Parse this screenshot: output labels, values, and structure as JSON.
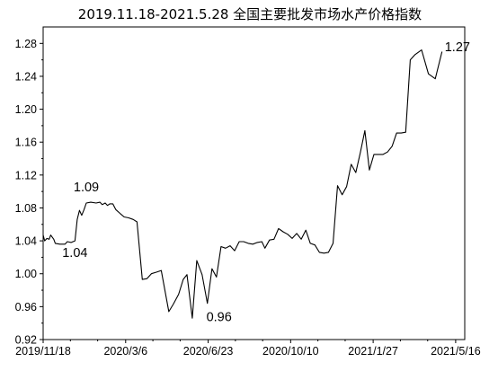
{
  "chart_data": {
    "type": "line",
    "title": "2019.11.18-2021.5.28 全国主要批发市场水产价格指数",
    "xlabel": "",
    "ylabel": "",
    "x_range": [
      "2019-11-18",
      "2021-05-28"
    ],
    "ylim": [
      0.92,
      1.3
    ],
    "y_ticks": [
      "0.92",
      "0.96",
      "1.00",
      "1.04",
      "1.08",
      "1.12",
      "1.16",
      "1.20",
      "1.24",
      "1.28"
    ],
    "x_ticks": [
      {
        "label": "2019/11/18",
        "date": "2019-11-18"
      },
      {
        "label": "2020/3/6",
        "date": "2020-03-06"
      },
      {
        "label": "2020/6/23",
        "date": "2020-06-23"
      },
      {
        "label": "2020/10/10",
        "date": "2020-10-10"
      },
      {
        "label": "2021/1/27",
        "date": "2021-01-27"
      },
      {
        "label": "2021/5/16",
        "date": "2021-05-16"
      }
    ],
    "grid": false,
    "legend": "none",
    "series": [
      {
        "points": [
          {
            "x": "2019-11-18",
            "y": 1.047
          },
          {
            "x": "2019-11-20",
            "y": 1.04
          },
          {
            "x": "2019-11-23",
            "y": 1.043
          },
          {
            "x": "2019-11-26",
            "y": 1.042
          },
          {
            "x": "2019-11-28",
            "y": 1.047
          },
          {
            "x": "2019-12-02",
            "y": 1.042
          },
          {
            "x": "2019-12-04",
            "y": 1.037
          },
          {
            "x": "2019-12-10",
            "y": 1.036
          },
          {
            "x": "2019-12-17",
            "y": 1.036
          },
          {
            "x": "2019-12-20",
            "y": 1.039
          },
          {
            "x": "2019-12-25",
            "y": 1.038
          },
          {
            "x": "2019-12-30",
            "y": 1.04
          },
          {
            "x": "2020-01-02",
            "y": 1.066
          },
          {
            "x": "2020-01-05",
            "y": 1.077
          },
          {
            "x": "2020-01-08",
            "y": 1.071
          },
          {
            "x": "2020-01-11",
            "y": 1.078
          },
          {
            "x": "2020-01-14",
            "y": 1.086
          },
          {
            "x": "2020-01-20",
            "y": 1.087
          },
          {
            "x": "2020-01-27",
            "y": 1.086
          },
          {
            "x": "2020-02-01",
            "y": 1.087
          },
          {
            "x": "2020-02-04",
            "y": 1.084
          },
          {
            "x": "2020-02-08",
            "y": 1.086
          },
          {
            "x": "2020-02-11",
            "y": 1.083
          },
          {
            "x": "2020-02-14",
            "y": 1.085
          },
          {
            "x": "2020-02-18",
            "y": 1.085
          },
          {
            "x": "2020-02-22",
            "y": 1.078
          },
          {
            "x": "2020-02-28",
            "y": 1.073
          },
          {
            "x": "2020-03-04",
            "y": 1.069
          },
          {
            "x": "2020-03-10",
            "y": 1.068
          },
          {
            "x": "2020-03-16",
            "y": 1.066
          },
          {
            "x": "2020-03-21",
            "y": 1.063
          },
          {
            "x": "2020-03-28",
            "y": 0.993
          },
          {
            "x": "2020-04-03",
            "y": 0.994
          },
          {
            "x": "2020-04-09",
            "y": 1.0
          },
          {
            "x": "2020-04-16",
            "y": 1.002
          },
          {
            "x": "2020-04-22",
            "y": 1.004
          },
          {
            "x": "2020-05-02",
            "y": 0.954
          },
          {
            "x": "2020-05-08",
            "y": 0.963
          },
          {
            "x": "2020-05-15",
            "y": 0.975
          },
          {
            "x": "2020-05-21",
            "y": 0.993
          },
          {
            "x": "2020-05-26",
            "y": 0.999
          },
          {
            "x": "2020-06-02",
            "y": 0.946
          },
          {
            "x": "2020-06-08",
            "y": 1.016
          },
          {
            "x": "2020-06-15",
            "y": 0.999
          },
          {
            "x": "2020-06-22",
            "y": 0.964
          },
          {
            "x": "2020-06-28",
            "y": 1.006
          },
          {
            "x": "2020-07-04",
            "y": 0.996
          },
          {
            "x": "2020-07-10",
            "y": 1.033
          },
          {
            "x": "2020-07-16",
            "y": 1.031
          },
          {
            "x": "2020-07-22",
            "y": 1.034
          },
          {
            "x": "2020-07-28",
            "y": 1.028
          },
          {
            "x": "2020-08-03",
            "y": 1.039
          },
          {
            "x": "2020-08-09",
            "y": 1.039
          },
          {
            "x": "2020-08-15",
            "y": 1.037
          },
          {
            "x": "2020-08-21",
            "y": 1.036
          },
          {
            "x": "2020-08-27",
            "y": 1.038
          },
          {
            "x": "2020-09-02",
            "y": 1.039
          },
          {
            "x": "2020-09-06",
            "y": 1.031
          },
          {
            "x": "2020-09-12",
            "y": 1.041
          },
          {
            "x": "2020-09-18",
            "y": 1.042
          },
          {
            "x": "2020-09-24",
            "y": 1.055
          },
          {
            "x": "2020-09-30",
            "y": 1.051
          },
          {
            "x": "2020-10-06",
            "y": 1.048
          },
          {
            "x": "2020-10-12",
            "y": 1.043
          },
          {
            "x": "2020-10-18",
            "y": 1.049
          },
          {
            "x": "2020-10-24",
            "y": 1.042
          },
          {
            "x": "2020-10-30",
            "y": 1.053
          },
          {
            "x": "2020-11-05",
            "y": 1.037
          },
          {
            "x": "2020-11-11",
            "y": 1.035
          },
          {
            "x": "2020-11-17",
            "y": 1.026
          },
          {
            "x": "2020-11-23",
            "y": 1.025
          },
          {
            "x": "2020-11-29",
            "y": 1.026
          },
          {
            "x": "2020-12-05",
            "y": 1.037
          },
          {
            "x": "2020-12-11",
            "y": 1.107
          },
          {
            "x": "2020-12-17",
            "y": 1.096
          },
          {
            "x": "2020-12-23",
            "y": 1.106
          },
          {
            "x": "2020-12-29",
            "y": 1.133
          },
          {
            "x": "2021-01-04",
            "y": 1.123
          },
          {
            "x": "2021-01-10",
            "y": 1.147
          },
          {
            "x": "2021-01-16",
            "y": 1.174
          },
          {
            "x": "2021-01-22",
            "y": 1.126
          },
          {
            "x": "2021-01-28",
            "y": 1.145
          },
          {
            "x": "2021-02-03",
            "y": 1.145
          },
          {
            "x": "2021-02-09",
            "y": 1.145
          },
          {
            "x": "2021-02-15",
            "y": 1.148
          },
          {
            "x": "2021-02-21",
            "y": 1.155
          },
          {
            "x": "2021-02-27",
            "y": 1.171
          },
          {
            "x": "2021-03-05",
            "y": 1.171
          },
          {
            "x": "2021-03-11",
            "y": 1.172
          },
          {
            "x": "2021-03-17",
            "y": 1.26
          },
          {
            "x": "2021-03-23",
            "y": 1.266
          },
          {
            "x": "2021-04-01",
            "y": 1.272
          },
          {
            "x": "2021-04-10",
            "y": 1.243
          },
          {
            "x": "2021-04-19",
            "y": 1.237
          },
          {
            "x": "2021-04-28",
            "y": 1.27
          }
        ]
      }
    ],
    "annotations": [
      {
        "text": "1.09",
        "x": "2020-01-14",
        "y": 1.087
      },
      {
        "text": "1.04",
        "x": "2019-12-30",
        "y": 1.04
      },
      {
        "text": "0.96",
        "x": "2020-06-22",
        "y": 0.964
      },
      {
        "text": "1.27",
        "x": "2021-04-28",
        "y": 1.27
      }
    ]
  }
}
